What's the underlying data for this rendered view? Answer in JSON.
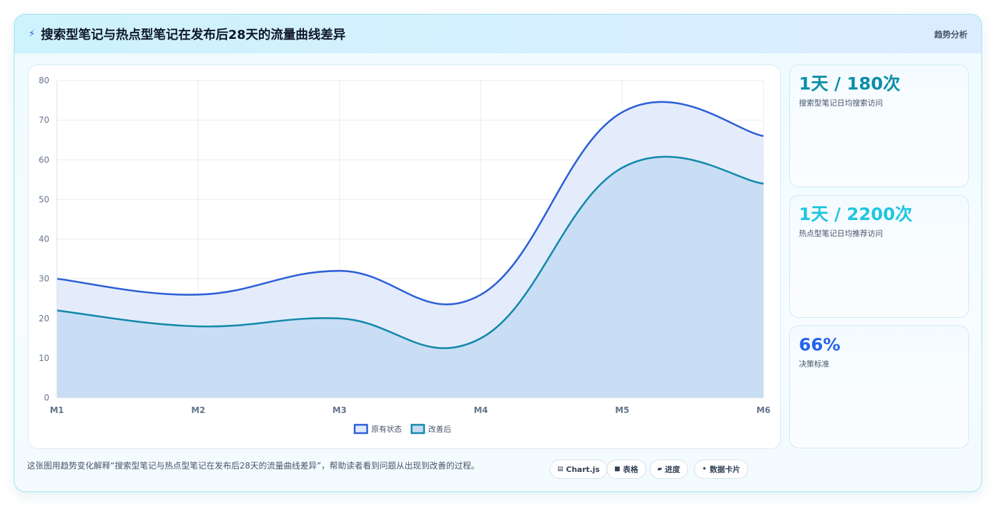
{
  "header": {
    "title": "搜索型笔记与热点型笔记在发布后28天的流量曲线差异",
    "tag": "趋势分析"
  },
  "stats": [
    {
      "value": "1天 / 180次",
      "label": "搜索型笔记日均搜索访问",
      "color": "#0e8fa8"
    },
    {
      "value": "1天 / 2200次",
      "label": "热点型笔记日均推荐访问",
      "color": "#22c5e0"
    },
    {
      "value": "66%",
      "label": "决策标准",
      "color": "#2563eb"
    }
  ],
  "caption": "这张图用趋势变化解释“搜索型笔记与热点型笔记在发布后28天的流量曲线差异”，帮助读者看到问题从出现到改善的过程。",
  "pills": [
    {
      "icon": "chart-icon",
      "glyph": "▤",
      "label": "Chart.js"
    },
    {
      "icon": "table-icon",
      "glyph": "■",
      "label": "表格"
    },
    {
      "icon": "progress-icon",
      "glyph": "▰",
      "label": "进度"
    },
    {
      "icon": "sparkle-icon",
      "glyph": "✦",
      "label": "数据卡片"
    }
  ],
  "chart_data": {
    "type": "area",
    "categories": [
      "M1",
      "M2",
      "M3",
      "M4",
      "M5",
      "M6"
    ],
    "series": [
      {
        "name": "原有状态",
        "values": [
          30,
          26,
          32,
          26,
          72,
          66
        ],
        "color": "#2c5fd6",
        "fill": "#dfe9fb"
      },
      {
        "name": "改善后",
        "values": [
          22,
          18,
          20,
          15,
          58,
          54
        ],
        "color": "#1489ab",
        "fill": "#c4dcf2"
      }
    ],
    "ylim": [
      0,
      80
    ],
    "yticks": [
      0,
      10,
      20,
      30,
      40,
      50,
      60,
      70,
      80
    ],
    "grid": true,
    "legend": "bottom"
  }
}
